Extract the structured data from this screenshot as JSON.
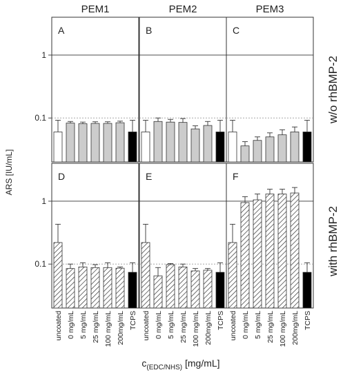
{
  "figure": {
    "column_titles": [
      "PEM1",
      "PEM2",
      "PEM3"
    ],
    "row_titles": [
      "w/o rhBMP-2",
      "with rhBMP-2"
    ],
    "ylabel": "ARS [IU/mL]",
    "xlabel_main": "c",
    "xlabel_sub": "(EDC/NHS)",
    "xlabel_unit": " [mg/mL]"
  },
  "chart_data": {
    "type": "bar",
    "yscale": "log",
    "ylim": [
      0.02,
      4
    ],
    "yticks": [
      0.1,
      1
    ],
    "ytick_labels": [
      "0.1",
      "1"
    ],
    "reference_lines": [
      {
        "y": 1,
        "style": "solid"
      },
      {
        "y": 0.1,
        "style": "dotted"
      }
    ],
    "categories": [
      "uncoated",
      "0 mg/mL",
      "5 mg/mL",
      "25 mg/mL",
      "100 mg/mL",
      "200mg/mL",
      "TCPS"
    ],
    "category_colors": [
      "#ffffff",
      "#cccccc",
      "#cccccc",
      "#cccccc",
      "#cccccc",
      "#cccccc",
      "#000000"
    ],
    "panels": [
      {
        "letter": "A",
        "row": 0,
        "col": 0,
        "pattern": "solid",
        "values": [
          0.06,
          0.083,
          0.081,
          0.082,
          0.082,
          0.084,
          0.06
        ],
        "errors": [
          0.092,
          0.088,
          0.086,
          0.087,
          0.087,
          0.089,
          0.092
        ]
      },
      {
        "letter": "B",
        "row": 0,
        "col": 1,
        "pattern": "solid",
        "values": [
          0.06,
          0.088,
          0.086,
          0.085,
          0.067,
          0.076,
          0.06
        ],
        "errors": [
          0.092,
          0.1,
          0.095,
          0.098,
          0.075,
          0.088,
          0.092
        ]
      },
      {
        "letter": "C",
        "row": 0,
        "col": 2,
        "pattern": "solid",
        "values": [
          0.06,
          0.036,
          0.044,
          0.05,
          0.054,
          0.06,
          0.06
        ],
        "errors": [
          0.092,
          0.042,
          0.05,
          0.058,
          0.065,
          0.072,
          0.092
        ]
      },
      {
        "letter": "D",
        "row": 1,
        "col": 0,
        "pattern": "hatch",
        "values": [
          0.22,
          0.085,
          0.09,
          0.088,
          0.088,
          0.086,
          0.074
        ],
        "errors": [
          0.43,
          0.1,
          0.105,
          0.098,
          0.105,
          0.09,
          0.105
        ]
      },
      {
        "letter": "E",
        "row": 1,
        "col": 1,
        "pattern": "hatch",
        "values": [
          0.22,
          0.065,
          0.098,
          0.09,
          0.078,
          0.08,
          0.074
        ],
        "errors": [
          0.43,
          0.088,
          0.102,
          0.1,
          0.085,
          0.085,
          0.105
        ]
      },
      {
        "letter": "F",
        "row": 1,
        "col": 2,
        "pattern": "hatch",
        "values": [
          0.22,
          0.95,
          1.05,
          1.3,
          1.3,
          1.35,
          0.074
        ],
        "errors": [
          0.43,
          1.18,
          1.3,
          1.55,
          1.55,
          1.65,
          0.105
        ]
      }
    ]
  }
}
